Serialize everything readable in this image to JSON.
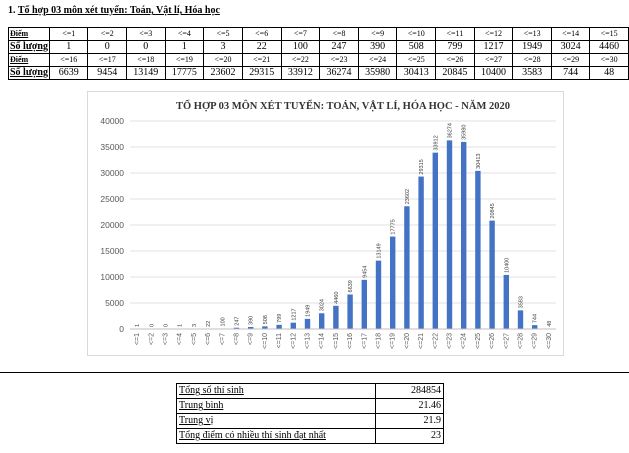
{
  "heading": {
    "prefix": "1. ",
    "text": "Tổ hợp 03 môn xét tuyển: Toán, Vật lí, Hóa học"
  },
  "table": {
    "score_label": "Điểm",
    "count_label": "Số lượng",
    "rows": [
      {
        "scores": [
          "<=1",
          "<=2",
          "<=3",
          "<=4",
          "<=5",
          "<=6",
          "<=7",
          "<=8",
          "<=9",
          "<=10",
          "<=11",
          "<=12",
          "<=13",
          "<=14",
          "<=15"
        ],
        "counts": [
          "1",
          "0",
          "0",
          "1",
          "3",
          "22",
          "100",
          "247",
          "390",
          "508",
          "799",
          "1217",
          "1949",
          "3024",
          "4460"
        ]
      },
      {
        "scores": [
          "<=16",
          "<=17",
          "<=18",
          "<=19",
          "<=20",
          "<=21",
          "<=22",
          "<=23",
          "<=24",
          "<=25",
          "<=26",
          "<=27",
          "<=28",
          "<=29",
          "<=30"
        ],
        "counts": [
          "6639",
          "9454",
          "13149",
          "17775",
          "23602",
          "29315",
          "33912",
          "36274",
          "35980",
          "30413",
          "20845",
          "10400",
          "3583",
          "744",
          "48"
        ]
      }
    ]
  },
  "chart_data": {
    "type": "bar",
    "title": "TỔ HỢP 03 MÔN XÉT TUYỂN: TOÁN, VẬT LÍ, HÓA HỌC - NĂM 2020",
    "categories": [
      "<=1",
      "<=2",
      "<=3",
      "<=4",
      "<=5",
      "<=6",
      "<=7",
      "<=8",
      "<=9",
      "<=10",
      "<=11",
      "<=12",
      "<=13",
      "<=14",
      "<=15",
      "<=16",
      "<=17",
      "<=18",
      "<=19",
      "<=20",
      "<=21",
      "<=22",
      "<=23",
      "<=24",
      "<=25",
      "<=26",
      "<=27",
      "<=28",
      "<=29",
      "<=30"
    ],
    "values": [
      1,
      0,
      0,
      1,
      3,
      22,
      100,
      247,
      390,
      508,
      799,
      1217,
      1949,
      3024,
      4460,
      6639,
      9454,
      13149,
      17775,
      23602,
      29315,
      33912,
      36274,
      35980,
      30413,
      20845,
      10400,
      3583,
      744,
      48
    ],
    "y_ticks": [
      "0",
      "5000",
      "10000",
      "15000",
      "20000",
      "25000",
      "30000",
      "35000",
      "40000"
    ],
    "ylim": [
      0,
      40000
    ],
    "grid": true,
    "legend": "none",
    "data_labels": true,
    "bar_color": "#4472c4"
  },
  "stats": [
    {
      "label": "Tổng số thí sinh",
      "value": "284854"
    },
    {
      "label": "Trung bình",
      "value": "21.46"
    },
    {
      "label": "Trung vị",
      "value": "21.9"
    },
    {
      "label": "Tổng điểm có nhiều thí sinh đạt nhất",
      "value": "23"
    }
  ]
}
